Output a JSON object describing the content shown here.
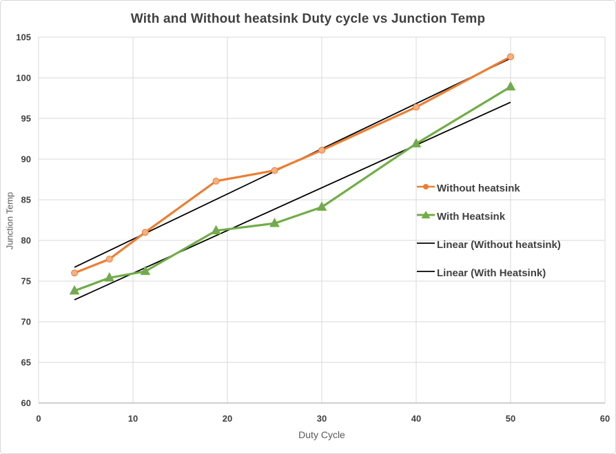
{
  "figure": {
    "title": "With and Without heatsink Duty cycle vs Junction Temp"
  },
  "chart_data": {
    "type": "line",
    "title": "With and Without heatsink Duty cycle vs Junction Temp",
    "xlabel": "Duty Cycle",
    "ylabel": "Junction Temp",
    "xlim": [
      0,
      60
    ],
    "ylim": [
      60,
      105
    ],
    "x_ticks": [
      0,
      10,
      20,
      30,
      40,
      50,
      60
    ],
    "y_ticks": [
      60,
      65,
      70,
      75,
      80,
      85,
      90,
      95,
      100,
      105
    ],
    "grid": true,
    "legend_position": "inside-right",
    "series": [
      {
        "name": "Without heatsink",
        "marker": "circle",
        "color": "#ED7D31",
        "marker_fill": "#F4B183",
        "x": [
          3.8,
          7.5,
          11.3,
          18.8,
          25,
          30,
          40,
          50
        ],
        "values": [
          76.0,
          77.7,
          81.0,
          87.3,
          88.6,
          91.1,
          96.4,
          102.6
        ]
      },
      {
        "name": "With Heatsink",
        "marker": "triangle",
        "color": "#70AD47",
        "marker_fill": "#70AD47",
        "x": [
          3.8,
          7.5,
          11.3,
          18.8,
          25,
          30,
          40,
          50
        ],
        "values": [
          73.8,
          75.4,
          76.2,
          81.2,
          82.1,
          84.1,
          91.9,
          98.9
        ]
      }
    ],
    "trendlines": [
      {
        "name": "Linear (Without heatsink)",
        "color": "#000000",
        "x1": 3.8,
        "y1": 76.7,
        "x2": 50,
        "y2": 102.4
      },
      {
        "name": "Linear (With Heatsink)",
        "color": "#000000",
        "x1": 3.8,
        "y1": 72.7,
        "x2": 50,
        "y2": 97.0
      }
    ],
    "legend": [
      "Without heatsink",
      "With Heatsink",
      "Linear (Without heatsink)",
      "Linear (With Heatsink)"
    ]
  },
  "colors": {
    "text": "#404040",
    "axis_title_text": "#595959",
    "gridline": "#D9D9D9",
    "axis_line": "#BFBFBF",
    "trendline": "#000000",
    "background": "#FFFFFF",
    "border": "#D7D7D7"
  }
}
